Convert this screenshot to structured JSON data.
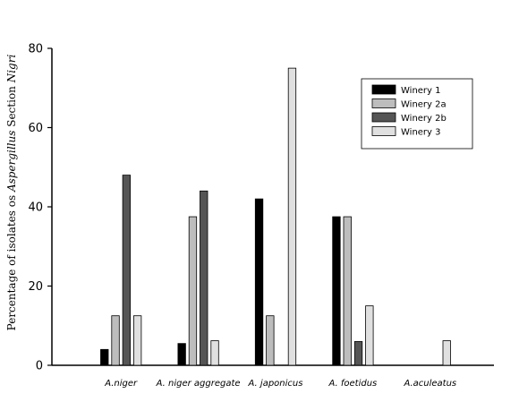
{
  "chart_data": {
    "type": "bar",
    "ylabel_plain": "Percentage of isolates os ",
    "ylabel_italic": "Aspergillus",
    "ylabel_plain2": " Section ",
    "ylabel_italic2": "Nigri",
    "xlabel": "",
    "ylim": [
      0,
      80
    ],
    "yticks": [
      "0",
      "20",
      "40",
      "60",
      "80"
    ],
    "ytick_values": [
      0,
      20,
      40,
      60,
      80
    ],
    "categories": [
      "A.niger",
      "A. niger aggregate",
      "A. japonicus",
      "A. foetidus",
      "A.aculeatus"
    ],
    "series": [
      {
        "name": "Winery 1",
        "color": "#000000",
        "values": [
          4,
          5.5,
          42,
          37.5,
          0
        ]
      },
      {
        "name": "Winery 2a",
        "color": "#bdbdbd",
        "values": [
          12.5,
          37.5,
          12.5,
          37.5,
          0
        ]
      },
      {
        "name": "Winery 2b",
        "color": "#555555",
        "values": [
          48,
          44,
          0,
          6,
          0
        ]
      },
      {
        "name": "Winery 3",
        "color": "#e0e0e0",
        "values": [
          12.5,
          6.2,
          75,
          15,
          6.2
        ]
      }
    ],
    "grid": false,
    "legend_position": "top-right"
  }
}
